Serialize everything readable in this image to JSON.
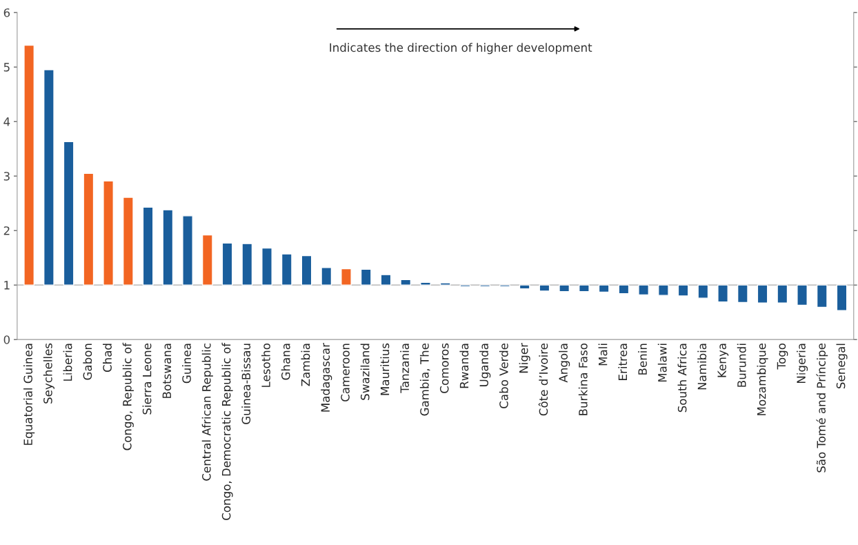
{
  "chart_data": {
    "type": "bar",
    "categories": [
      "Equatorial Guinea",
      "Seychelles",
      "Liberia",
      "Gabon",
      "Chad",
      "Congo, Republic of",
      "Sierra Leone",
      "Botswana",
      "Guinea",
      "Central African Republic",
      "Congo, Democratic Republic of",
      "Guinea-Bissau",
      "Lesotho",
      "Ghana",
      "Zambia",
      "Madagascar",
      "Cameroon",
      "Swaziland",
      "Mauritius",
      "Tanzania",
      "Gambia, The",
      "Comoros",
      "Rwanda",
      "Uganda",
      "Cabo Verde",
      "Niger",
      "Côte d’Ivoire",
      "Angola",
      "Burkina Faso",
      "Mali",
      "Eritrea",
      "Benin",
      "Malawi",
      "South Africa",
      "Namibia",
      "Kenya",
      "Burundi",
      "Mozambique",
      "Togo",
      "Nigeria",
      "São Tomé and Príncipe",
      "Senegal"
    ],
    "values": [
      4.4,
      3.95,
      2.63,
      2.05,
      1.91,
      1.61,
      1.43,
      1.38,
      1.27,
      0.92,
      0.77,
      0.76,
      0.68,
      0.57,
      0.54,
      0.32,
      0.3,
      0.29,
      0.19,
      0.1,
      0.05,
      0.04,
      -0.03,
      -0.03,
      -0.03,
      -0.07,
      -0.11,
      -0.12,
      -0.12,
      -0.13,
      -0.16,
      -0.18,
      -0.19,
      -0.2,
      -0.24,
      -0.31,
      -0.32,
      -0.33,
      -0.33,
      -0.37,
      -0.41,
      -0.47
    ],
    "base": [
      1,
      1,
      1,
      1,
      1,
      1,
      1,
      1,
      1,
      1,
      1,
      1,
      1,
      1,
      1,
      1,
      1,
      1,
      1,
      1,
      1,
      1,
      1,
      1,
      1,
      1,
      1,
      1,
      1,
      1,
      1,
      1,
      1,
      1,
      1,
      1,
      1,
      1,
      1,
      1,
      1,
      1
    ],
    "colors": [
      "#f26522",
      "#1a5e9c",
      "#1a5e9c",
      "#f26522",
      "#f26522",
      "#f26522",
      "#1a5e9c",
      "#1a5e9c",
      "#1a5e9c",
      "#f26522",
      "#1a5e9c",
      "#1a5e9c",
      "#1a5e9c",
      "#1a5e9c",
      "#1a5e9c",
      "#1a5e9c",
      "#f26522",
      "#1a5e9c",
      "#1a5e9c",
      "#1a5e9c",
      "#1a5e9c",
      "#1a5e9c",
      "#1a5e9c",
      "#1a5e9c",
      "#1a5e9c",
      "#1a5e9c",
      "#1a5e9c",
      "#1a5e9c",
      "#1a5e9c",
      "#1a5e9c",
      "#1a5e9c",
      "#1a5e9c",
      "#1a5e9c",
      "#1a5e9c",
      "#1a5e9c",
      "#1a5e9c",
      "#1a5e9c",
      "#1a5e9c",
      "#1a5e9c",
      "#1a5e9c",
      "#1a5e9c",
      "#1a5e9c"
    ],
    "ylim": [
      0,
      6
    ],
    "yticks": [
      0,
      1,
      2,
      3,
      4,
      5,
      6
    ],
    "ref_lines": [
      {
        "axis": "y",
        "value": 1,
        "color": "#aaaaaa"
      }
    ],
    "annotations": [
      "Indicates the direction of higher development"
    ],
    "grid": false,
    "legend": false
  }
}
